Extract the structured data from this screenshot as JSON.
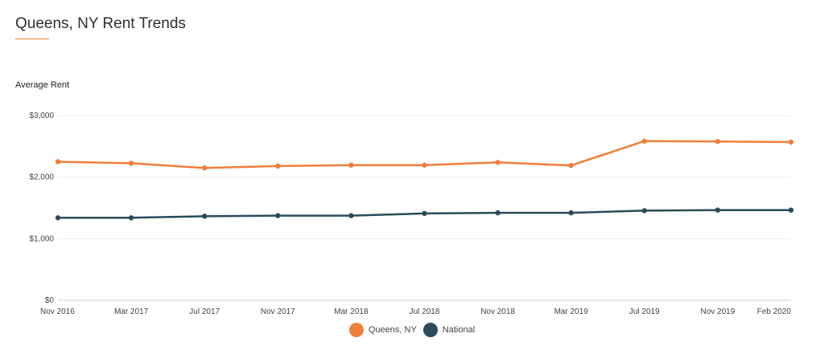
{
  "page": {
    "title": "Queens, NY Rent Trends"
  },
  "chart_data": {
    "type": "line",
    "title": "Queens, NY Rent Trends",
    "ylabel": "Average Rent",
    "xlabel": "",
    "categories": [
      "Nov 2016",
      "Mar 2017",
      "Jul 2017",
      "Nov 2017",
      "Mar 2018",
      "Jul 2018",
      "Nov 2018",
      "Mar 2019",
      "Jul 2019",
      "Nov 2019",
      "Feb 2020"
    ],
    "ylim": [
      0,
      3000
    ],
    "yticks": [
      0,
      1000,
      2000,
      3000
    ],
    "ytick_labels": [
      "$0",
      "$1,000",
      "$2,000",
      "$3,000"
    ],
    "grid": true,
    "legend_position": "bottom-center",
    "series": [
      {
        "name": "Queens, NY",
        "color": "#ef7f3b",
        "values": [
          2250,
          2225,
          2150,
          2180,
          2195,
          2195,
          2240,
          2190,
          2585,
          2580,
          2570
        ]
      },
      {
        "name": "National",
        "color": "#2b4b5a",
        "values": [
          1340,
          1340,
          1365,
          1375,
          1375,
          1410,
          1420,
          1420,
          1455,
          1465,
          1465
        ]
      }
    ]
  }
}
